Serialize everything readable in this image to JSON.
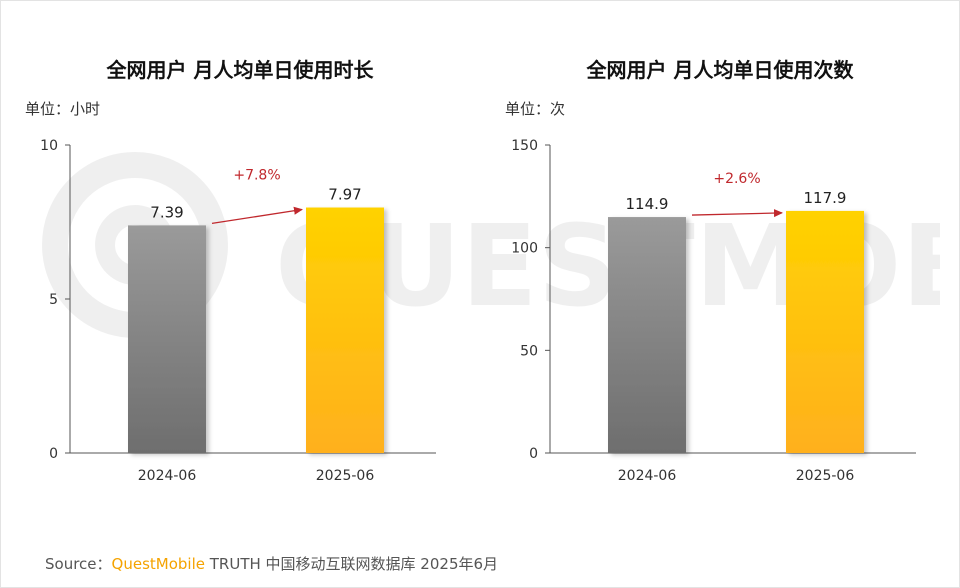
{
  "source": {
    "prefix": "Source：",
    "brand": "QuestMobile",
    "rest": "TRUTH 中国移动互联网数据库 2025年6月"
  },
  "watermark_text": "QUESTMOBILE",
  "colors": {
    "gray_top": "#9a9a9a",
    "gray_bottom": "#6e6e6e",
    "yellow_top": "#ffd200",
    "yellow_bottom": "#ffb01e",
    "growth": "#c0282d",
    "axis": "#555555"
  },
  "chart_data": [
    {
      "type": "bar",
      "title": "全网用户 月人均单日使用时长",
      "unit_label": "单位：小时",
      "categories": [
        "2024-06",
        "2025-06"
      ],
      "values": [
        7.39,
        7.97
      ],
      "value_labels": [
        "7.39",
        "7.97"
      ],
      "yticks": [
        0,
        5,
        10
      ],
      "ylim": [
        0,
        10
      ],
      "growth_label": "+7.8%"
    },
    {
      "type": "bar",
      "title": "全网用户 月人均单日使用次数",
      "unit_label": "单位：次",
      "categories": [
        "2024-06",
        "2025-06"
      ],
      "values": [
        114.9,
        117.9
      ],
      "value_labels": [
        "114.9",
        "117.9"
      ],
      "yticks": [
        0,
        50,
        100,
        150
      ],
      "ylim": [
        0,
        150
      ],
      "growth_label": "+2.6%"
    }
  ]
}
